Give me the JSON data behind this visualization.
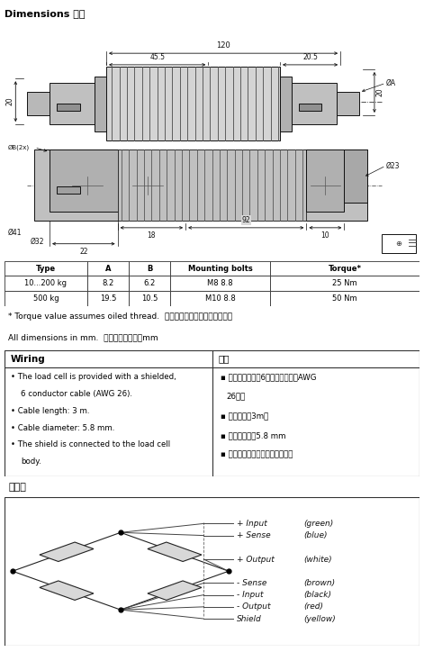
{
  "title": "Dimensions 尺寸",
  "table_header": [
    "Type",
    "A",
    "B",
    "Mounting bolts",
    "Torque*"
  ],
  "table_rows": [
    [
      "10...200 kg",
      "8.2",
      "6.2",
      "M8 8.8",
      "25 Nm"
    ],
    [
      "500 kg",
      "19.5",
      "10.5",
      "M10 8.8",
      "50 Nm"
    ]
  ],
  "note1": "* Torque value assumes oiled thread.  力矩値是假设在油螺紹情况下。",
  "note2": "All dimensions in mm.  所有尺寸单位为：mm",
  "wiring_en": "Wiring",
  "wiring_cn": "连接",
  "wiring_en_lines": [
    "• The load cell is provided with a shielded,",
    "6 conductor cable (AWG 26).",
    "• Cable length: 3 m.",
    "• Cable diameter: 5.8 mm.",
    "• The shield is connected to the load cell",
    "body."
  ],
  "wiring_cn_lines": [
    "▪ 称重传感器专用6芯屏蔽电缆线（AWG",
    "26）。",
    "▪ 电缆长度：3m。",
    "▪ 电缆直径为：5.8 mm",
    "▪ 屏蔽线与称重传感器本体相连。"
  ],
  "bridge_title": "接线图",
  "bridge_wires": [
    {
      "label": "+ Input",
      "color_word": "(green)"
    },
    {
      "label": "+ Sense",
      "color_word": "(blue)"
    },
    {
      "label": "+ Output",
      "color_word": "(white)"
    },
    {
      "label": "- Sense",
      "color_word": "(brown)"
    },
    {
      "label": "- Input",
      "color_word": "(black)"
    },
    {
      "label": "- Output",
      "color_word": "(red)"
    },
    {
      "label": "Shield",
      "color_word": "(yellow)"
    }
  ],
  "draw_bg": "#d8d8d8",
  "bridge_bg": "#e8e8e8"
}
